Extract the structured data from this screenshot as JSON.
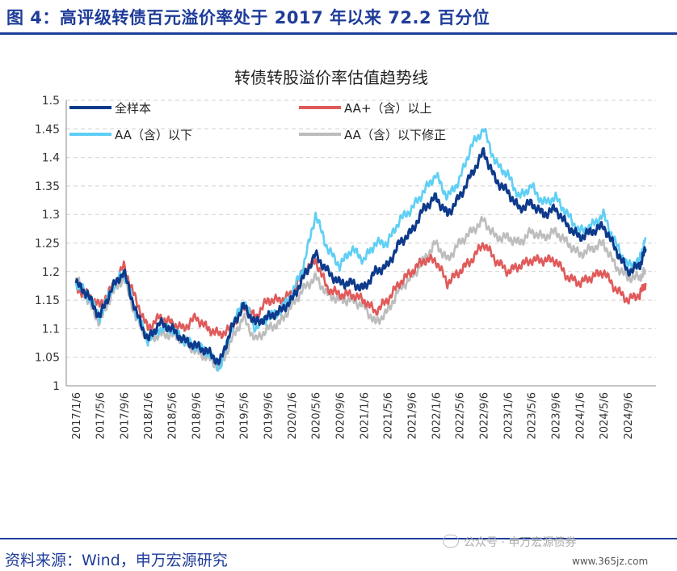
{
  "figure_title": "图 4：高评级转债百元溢价率处于 2017 年以来 72.2 百分位",
  "source": "资料来源：Wind，申万宏源研究",
  "watermark": "公众号 · 申万宏源债券",
  "watermark_site": "www.365jz.com",
  "chart_data": {
    "type": "line",
    "title": "转债转股溢价率估值趋势线",
    "xlabel": "",
    "ylabel": "",
    "ylim": [
      1,
      1.5
    ],
    "yticks": [
      1,
      1.05,
      1.1,
      1.15,
      1.2,
      1.25,
      1.3,
      1.35,
      1.4,
      1.45,
      1.5
    ],
    "ytick_labels": [
      "1",
      "1.05",
      "1.1",
      "1.15",
      "1.2",
      "1.25",
      "1.3",
      "1.35",
      "1.4",
      "1.45",
      "1.5"
    ],
    "x_tick_labels": [
      "2017/1/6",
      "2017/5/6",
      "2017/9/6",
      "2018/1/6",
      "2018/5/6",
      "2018/9/6",
      "2019/1/6",
      "2019/5/6",
      "2019/9/6",
      "2020/1/6",
      "2020/5/6",
      "2020/9/6",
      "2021/1/6",
      "2021/5/6",
      "2021/9/6",
      "2022/1/6",
      "2022/5/6",
      "2022/9/6",
      "2023/1/6",
      "2023/5/6",
      "2023/9/6",
      "2024/1/6",
      "2024/5/6",
      "2024/9/6"
    ],
    "x": [
      "2017/1/6",
      "2017/3/6",
      "2017/5/6",
      "2017/7/6",
      "2017/9/6",
      "2017/11/6",
      "2018/1/6",
      "2018/3/6",
      "2018/5/6",
      "2018/7/6",
      "2018/9/6",
      "2018/11/6",
      "2019/1/6",
      "2019/3/6",
      "2019/5/6",
      "2019/7/6",
      "2019/9/6",
      "2019/11/6",
      "2020/1/6",
      "2020/3/6",
      "2020/5/6",
      "2020/7/6",
      "2020/9/6",
      "2020/11/6",
      "2021/1/6",
      "2021/3/6",
      "2021/5/6",
      "2021/7/6",
      "2021/9/6",
      "2021/11/6",
      "2022/1/6",
      "2022/3/6",
      "2022/5/6",
      "2022/7/6",
      "2022/9/6",
      "2022/11/6",
      "2023/1/6",
      "2023/3/6",
      "2023/5/6",
      "2023/7/6",
      "2023/9/6",
      "2023/11/6",
      "2024/1/6",
      "2024/3/6",
      "2024/5/6",
      "2024/7/6",
      "2024/9/6",
      "2024/11/6",
      "2024/12/6"
    ],
    "series": [
      {
        "name": "全样本",
        "color": "#0d3a8c",
        "values": [
          1.18,
          1.16,
          1.12,
          1.17,
          1.2,
          1.13,
          1.08,
          1.11,
          1.1,
          1.08,
          1.07,
          1.06,
          1.04,
          1.1,
          1.14,
          1.11,
          1.12,
          1.13,
          1.15,
          1.19,
          1.23,
          1.2,
          1.18,
          1.18,
          1.17,
          1.2,
          1.21,
          1.25,
          1.27,
          1.31,
          1.33,
          1.3,
          1.33,
          1.37,
          1.41,
          1.36,
          1.34,
          1.31,
          1.32,
          1.3,
          1.31,
          1.28,
          1.26,
          1.27,
          1.28,
          1.24,
          1.2,
          1.21,
          1.24
        ]
      },
      {
        "name": "AA+（含）以上",
        "color": "#e05a5a",
        "values": [
          1.17,
          1.16,
          1.14,
          1.17,
          1.21,
          1.15,
          1.1,
          1.12,
          1.11,
          1.1,
          1.12,
          1.1,
          1.09,
          1.1,
          1.14,
          1.12,
          1.15,
          1.15,
          1.16,
          1.2,
          1.22,
          1.17,
          1.16,
          1.16,
          1.15,
          1.13,
          1.15,
          1.18,
          1.2,
          1.22,
          1.22,
          1.18,
          1.2,
          1.22,
          1.25,
          1.22,
          1.2,
          1.21,
          1.22,
          1.22,
          1.22,
          1.19,
          1.18,
          1.19,
          1.2,
          1.17,
          1.15,
          1.16,
          1.18
        ]
      },
      {
        "name": "AA（含）以下",
        "color": "#5fcff5",
        "values": [
          1.18,
          1.16,
          1.12,
          1.17,
          1.2,
          1.13,
          1.08,
          1.1,
          1.1,
          1.08,
          1.07,
          1.06,
          1.03,
          1.1,
          1.15,
          1.1,
          1.12,
          1.13,
          1.16,
          1.21,
          1.3,
          1.24,
          1.21,
          1.24,
          1.22,
          1.25,
          1.25,
          1.29,
          1.31,
          1.34,
          1.37,
          1.33,
          1.36,
          1.42,
          1.45,
          1.39,
          1.37,
          1.33,
          1.35,
          1.32,
          1.33,
          1.3,
          1.27,
          1.28,
          1.3,
          1.25,
          1.21,
          1.22,
          1.26
        ]
      },
      {
        "name": "AA（含）以下修正",
        "color": "#bdbdbd",
        "values": [
          1.19,
          1.15,
          1.11,
          1.16,
          1.19,
          1.12,
          1.08,
          1.09,
          1.09,
          1.08,
          1.06,
          1.05,
          1.03,
          1.08,
          1.12,
          1.08,
          1.1,
          1.11,
          1.14,
          1.17,
          1.19,
          1.16,
          1.15,
          1.15,
          1.14,
          1.11,
          1.13,
          1.17,
          1.19,
          1.22,
          1.25,
          1.22,
          1.25,
          1.27,
          1.29,
          1.26,
          1.26,
          1.25,
          1.27,
          1.26,
          1.27,
          1.25,
          1.23,
          1.24,
          1.25,
          1.21,
          1.19,
          1.19,
          1.2
        ]
      }
    ],
    "legend_position": "top",
    "grid": "horizontal dashed"
  }
}
